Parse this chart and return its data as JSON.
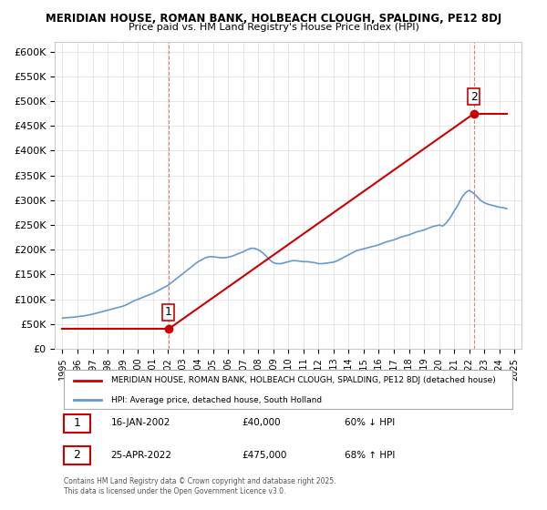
{
  "title1": "MERIDIAN HOUSE, ROMAN BANK, HOLBEACH CLOUGH, SPALDING, PE12 8DJ",
  "title2": "Price paid vs. HM Land Registry's House Price Index (HPI)",
  "ylabel": "",
  "background_color": "#ffffff",
  "grid_color": "#dddddd",
  "hpi_color": "#6699cc",
  "sale_color": "#cc0000",
  "ylim": [
    0,
    620000
  ],
  "yticks": [
    0,
    50000,
    100000,
    150000,
    200000,
    250000,
    300000,
    350000,
    400000,
    450000,
    500000,
    550000,
    600000
  ],
  "ytick_labels": [
    "£0",
    "£50K",
    "£100K",
    "£150K",
    "£200K",
    "£250K",
    "£300K",
    "£350K",
    "£400K",
    "£450K",
    "£500K",
    "£550K",
    "£600K"
  ],
  "sale1_date": 2002.04,
  "sale1_price": 40000,
  "sale1_label": "1",
  "sale2_date": 2022.32,
  "sale2_price": 475000,
  "sale2_label": "2",
  "legend_sale": "MERIDIAN HOUSE, ROMAN BANK, HOLBEACH CLOUGH, SPALDING, PE12 8DJ (detached house)",
  "legend_hpi": "HPI: Average price, detached house, South Holland",
  "table_row1": [
    "1",
    "16-JAN-2002",
    "£40,000",
    "60% ↓ HPI"
  ],
  "table_row2": [
    "2",
    "25-APR-2022",
    "£475,000",
    "68% ↑ HPI"
  ],
  "footnote": "Contains HM Land Registry data © Crown copyright and database right 2025.\nThis data is licensed under the Open Government Licence v3.0.",
  "hpi_data": {
    "dates": [
      1995.0,
      1995.25,
      1995.5,
      1995.75,
      1996.0,
      1996.25,
      1996.5,
      1996.75,
      1997.0,
      1997.25,
      1997.5,
      1997.75,
      1998.0,
      1998.25,
      1998.5,
      1998.75,
      1999.0,
      1999.25,
      1999.5,
      1999.75,
      2000.0,
      2000.25,
      2000.5,
      2000.75,
      2001.0,
      2001.25,
      2001.5,
      2001.75,
      2002.0,
      2002.25,
      2002.5,
      2002.75,
      2003.0,
      2003.25,
      2003.5,
      2003.75,
      2004.0,
      2004.25,
      2004.5,
      2004.75,
      2005.0,
      2005.25,
      2005.5,
      2005.75,
      2006.0,
      2006.25,
      2006.5,
      2006.75,
      2007.0,
      2007.25,
      2007.5,
      2007.75,
      2008.0,
      2008.25,
      2008.5,
      2008.75,
      2009.0,
      2009.25,
      2009.5,
      2009.75,
      2010.0,
      2010.25,
      2010.5,
      2010.75,
      2011.0,
      2011.25,
      2011.5,
      2011.75,
      2012.0,
      2012.25,
      2012.5,
      2012.75,
      2013.0,
      2013.25,
      2013.5,
      2013.75,
      2014.0,
      2014.25,
      2014.5,
      2014.75,
      2015.0,
      2015.25,
      2015.5,
      2015.75,
      2016.0,
      2016.25,
      2016.5,
      2016.75,
      2017.0,
      2017.25,
      2017.5,
      2017.75,
      2018.0,
      2018.25,
      2018.5,
      2018.75,
      2019.0,
      2019.25,
      2019.5,
      2019.75,
      2020.0,
      2020.25,
      2020.5,
      2020.75,
      2021.0,
      2021.25,
      2021.5,
      2021.75,
      2022.0,
      2022.25,
      2022.5,
      2022.75,
      2023.0,
      2023.25,
      2023.5,
      2023.75,
      2024.0,
      2024.25,
      2024.5
    ],
    "values": [
      62000,
      63000,
      63500,
      64000,
      65000,
      66000,
      67000,
      68500,
      70000,
      72000,
      74000,
      76000,
      78000,
      80000,
      82000,
      84000,
      86000,
      89000,
      93000,
      97000,
      100000,
      103000,
      106000,
      109000,
      112000,
      116000,
      120000,
      124000,
      128000,
      134000,
      140000,
      146000,
      152000,
      158000,
      164000,
      170000,
      176000,
      180000,
      184000,
      186000,
      186000,
      185000,
      184000,
      184000,
      185000,
      187000,
      190000,
      193000,
      196000,
      200000,
      203000,
      203000,
      200000,
      195000,
      188000,
      180000,
      174000,
      172000,
      172000,
      174000,
      176000,
      178000,
      178000,
      177000,
      176000,
      176000,
      175000,
      174000,
      172000,
      172000,
      173000,
      174000,
      175000,
      178000,
      182000,
      186000,
      190000,
      194000,
      198000,
      200000,
      202000,
      204000,
      206000,
      208000,
      210000,
      213000,
      216000,
      218000,
      220000,
      223000,
      226000,
      228000,
      230000,
      233000,
      236000,
      238000,
      240000,
      243000,
      246000,
      248000,
      250000,
      248000,
      255000,
      265000,
      278000,
      290000,
      305000,
      315000,
      320000,
      315000,
      308000,
      300000,
      295000,
      292000,
      290000,
      288000,
      286000,
      285000,
      283000
    ]
  },
  "sale_line_color": "#cc0000",
  "vline_color": "#cc0000",
  "vline_alpha": 0.5
}
